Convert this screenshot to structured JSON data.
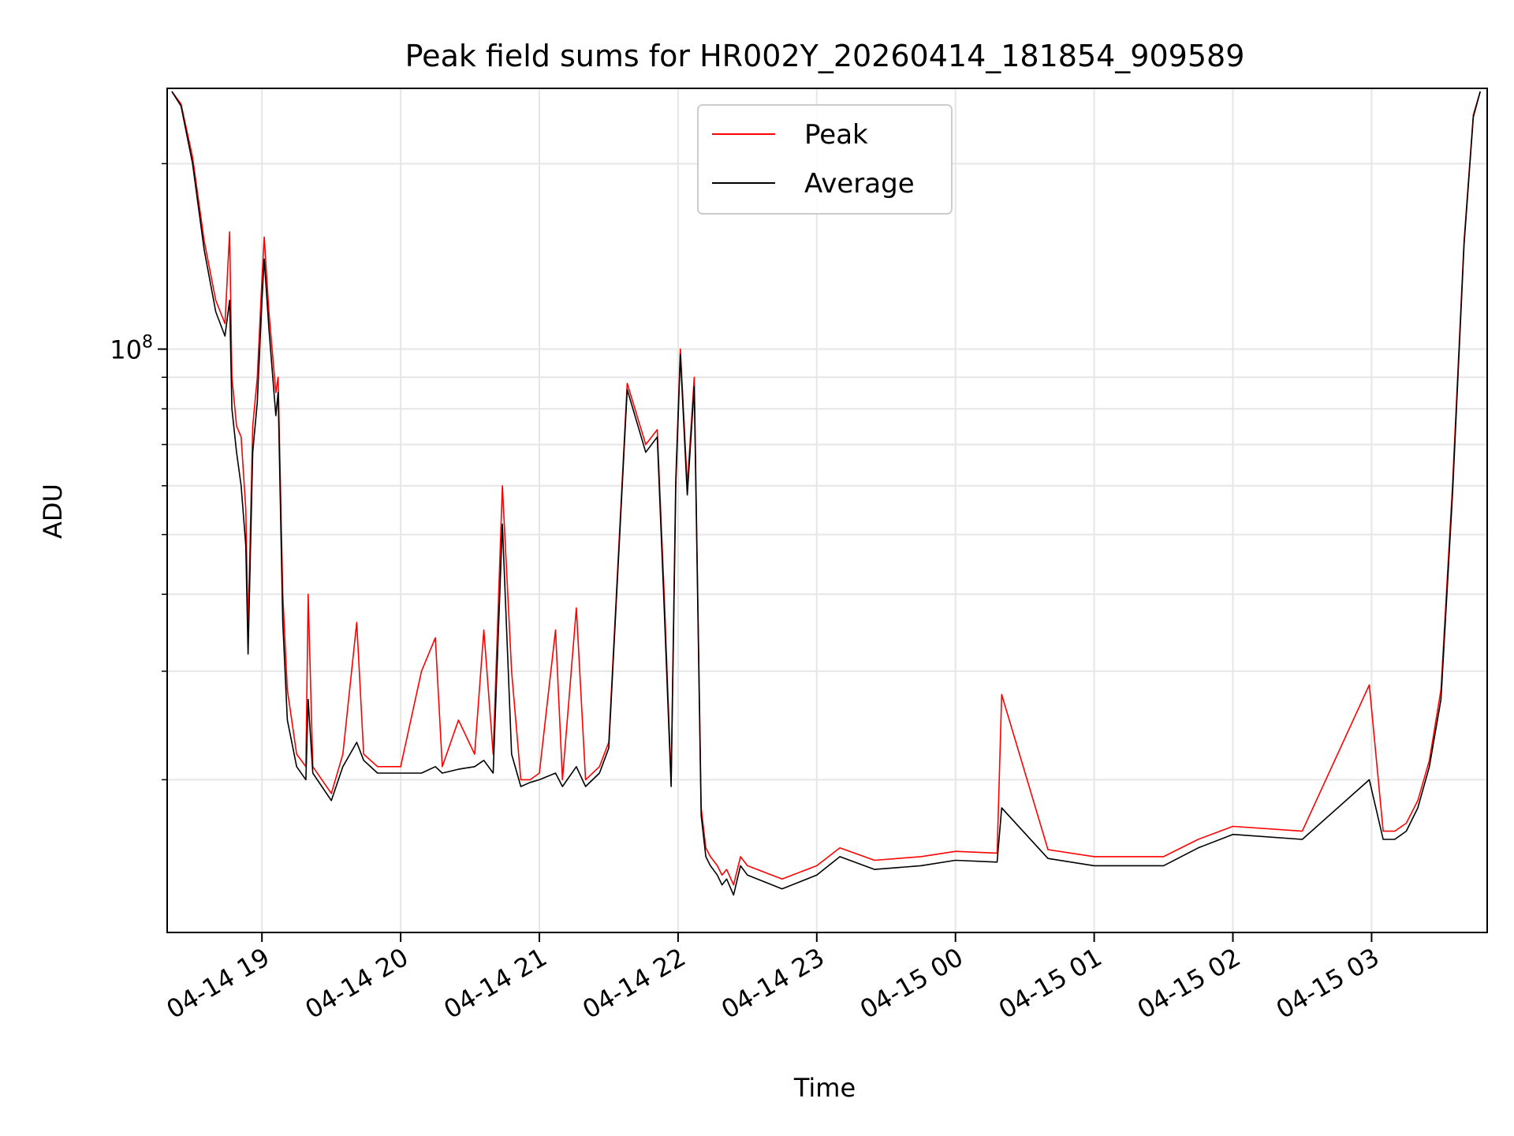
{
  "chart_data": {
    "type": "line",
    "title": "Peak field sums for HR002Y_20260414_181854_909589",
    "xlabel": "Time",
    "ylabel": "ADU",
    "yscale": "log",
    "grid": true,
    "grid_minor": true,
    "legend_position": "upper center",
    "xlim": [
      "2026-04-14 18:19",
      "2026-04-15 03:50"
    ],
    "ylim": [
      11300000,
      265000000
    ],
    "x_ticks": [
      "2026-04-14 19:00",
      "2026-04-14 20:00",
      "2026-04-14 21:00",
      "2026-04-14 22:00",
      "2026-04-14 23:00",
      "2026-04-15 00:00",
      "2026-04-15 01:00",
      "2026-04-15 02:00",
      "2026-04-15 03:00"
    ],
    "x_tick_labels": [
      "04-14 19",
      "04-14 20",
      "04-14 21",
      "04-14 22",
      "04-14 23",
      "04-15 00",
      "04-15 01",
      "04-15 02",
      "04-15 03"
    ],
    "y_ticks": [
      100000000
    ],
    "y_tick_labels": [
      {
        "base": "10",
        "exp": "8"
      }
    ],
    "y_minor_ticks": [
      20000000,
      30000000,
      40000000,
      50000000,
      60000000,
      70000000,
      80000000,
      90000000,
      200000000
    ],
    "series": [
      {
        "name": "Peak",
        "color": "#ff0000",
        "x": [
          "2026-04-14 18:21",
          "2026-04-14 18:25",
          "2026-04-14 18:30",
          "2026-04-14 18:35",
          "2026-04-14 18:40",
          "2026-04-14 18:44",
          "2026-04-14 18:46",
          "2026-04-14 18:47",
          "2026-04-14 18:49",
          "2026-04-14 18:51",
          "2026-04-14 18:53",
          "2026-04-14 18:54",
          "2026-04-14 18:56",
          "2026-04-14 18:58",
          "2026-04-14 19:00",
          "2026-04-14 19:01",
          "2026-04-14 19:03",
          "2026-04-14 19:06",
          "2026-04-14 19:07",
          "2026-04-14 19:09",
          "2026-04-14 19:11",
          "2026-04-14 19:15",
          "2026-04-14 19:19",
          "2026-04-14 19:20",
          "2026-04-14 19:22",
          "2026-04-14 19:30",
          "2026-04-14 19:35",
          "2026-04-14 19:41",
          "2026-04-14 19:44",
          "2026-04-14 19:50",
          "2026-04-14 20:00",
          "2026-04-14 20:09",
          "2026-04-14 20:15",
          "2026-04-14 20:18",
          "2026-04-14 20:25",
          "2026-04-14 20:32",
          "2026-04-14 20:36",
          "2026-04-14 20:40",
          "2026-04-14 20:44",
          "2026-04-14 20:48",
          "2026-04-14 20:52",
          "2026-04-14 20:56",
          "2026-04-14 21:00",
          "2026-04-14 21:07",
          "2026-04-14 21:10",
          "2026-04-14 21:16",
          "2026-04-14 21:20",
          "2026-04-14 21:26",
          "2026-04-14 21:30",
          "2026-04-14 21:38",
          "2026-04-14 21:46",
          "2026-04-14 21:51",
          "2026-04-14 21:54",
          "2026-04-14 21:57",
          "2026-04-14 21:59",
          "2026-04-14 22:01",
          "2026-04-14 22:04",
          "2026-04-14 22:07",
          "2026-04-14 22:10",
          "2026-04-14 22:12",
          "2026-04-14 22:14",
          "2026-04-14 22:17",
          "2026-04-14 22:19",
          "2026-04-14 22:21",
          "2026-04-14 22:24",
          "2026-04-14 22:27",
          "2026-04-14 22:30",
          "2026-04-14 22:45",
          "2026-04-14 23:00",
          "2026-04-14 23:10",
          "2026-04-14 23:25",
          "2026-04-14 23:45",
          "2026-04-15 00:00",
          "2026-04-15 00:18",
          "2026-04-15 00:20",
          "2026-04-15 00:40",
          "2026-04-15 01:00",
          "2026-04-15 01:30",
          "2026-04-15 01:45",
          "2026-04-15 02:00",
          "2026-04-15 02:30",
          "2026-04-15 02:59",
          "2026-04-15 03:05",
          "2026-04-15 03:10",
          "2026-04-15 03:15",
          "2026-04-15 03:20",
          "2026-04-15 03:25",
          "2026-04-15 03:30",
          "2026-04-15 03:35",
          "2026-04-15 03:40",
          "2026-04-15 03:44",
          "2026-04-15 03:47"
        ],
        "values": [
          262000000,
          250000000,
          205000000,
          150000000,
          120000000,
          110000000,
          155000000,
          90000000,
          75000000,
          72000000,
          55000000,
          35000000,
          75000000,
          90000000,
          130000000,
          152000000,
          115000000,
          85000000,
          90000000,
          40000000,
          28000000,
          22000000,
          21000000,
          40000000,
          21000000,
          19000000,
          22000000,
          36000000,
          22000000,
          21000000,
          21000000,
          30000000,
          34000000,
          21000000,
          25000000,
          22000000,
          35000000,
          22000000,
          60000000,
          30000000,
          20000000,
          20000000,
          20500000,
          35000000,
          20000000,
          38000000,
          20000000,
          21000000,
          23000000,
          88000000,
          70000000,
          74000000,
          40000000,
          20000000,
          62000000,
          100000000,
          60000000,
          90000000,
          18000000,
          15500000,
          15000000,
          14500000,
          14000000,
          14300000,
          13500000,
          15000000,
          14500000,
          13800000,
          14500000,
          15500000,
          14800000,
          15000000,
          15300000,
          15200000,
          27500000,
          15400000,
          15000000,
          15000000,
          16000000,
          16800000,
          16500000,
          28500000,
          16500000,
          16500000,
          17000000,
          18500000,
          21500000,
          28000000,
          60000000,
          150000000,
          240000000,
          262000000
        ]
      },
      {
        "name": "Average",
        "color": "#000000",
        "x": [
          "2026-04-14 18:21",
          "2026-04-14 18:25",
          "2026-04-14 18:30",
          "2026-04-14 18:35",
          "2026-04-14 18:40",
          "2026-04-14 18:44",
          "2026-04-14 18:46",
          "2026-04-14 18:47",
          "2026-04-14 18:49",
          "2026-04-14 18:51",
          "2026-04-14 18:53",
          "2026-04-14 18:54",
          "2026-04-14 18:56",
          "2026-04-14 18:58",
          "2026-04-14 19:00",
          "2026-04-14 19:01",
          "2026-04-14 19:03",
          "2026-04-14 19:06",
          "2026-04-14 19:07",
          "2026-04-14 19:09",
          "2026-04-14 19:11",
          "2026-04-14 19:15",
          "2026-04-14 19:19",
          "2026-04-14 19:20",
          "2026-04-14 19:22",
          "2026-04-14 19:30",
          "2026-04-14 19:35",
          "2026-04-14 19:41",
          "2026-04-14 19:44",
          "2026-04-14 19:50",
          "2026-04-14 20:00",
          "2026-04-14 20:09",
          "2026-04-14 20:15",
          "2026-04-14 20:18",
          "2026-04-14 20:25",
          "2026-04-14 20:32",
          "2026-04-14 20:36",
          "2026-04-14 20:40",
          "2026-04-14 20:44",
          "2026-04-14 20:48",
          "2026-04-14 20:52",
          "2026-04-14 20:56",
          "2026-04-14 21:00",
          "2026-04-14 21:07",
          "2026-04-14 21:10",
          "2026-04-14 21:16",
          "2026-04-14 21:20",
          "2026-04-14 21:26",
          "2026-04-14 21:30",
          "2026-04-14 21:38",
          "2026-04-14 21:46",
          "2026-04-14 21:51",
          "2026-04-14 21:54",
          "2026-04-14 21:57",
          "2026-04-14 21:59",
          "2026-04-14 22:01",
          "2026-04-14 22:04",
          "2026-04-14 22:07",
          "2026-04-14 22:10",
          "2026-04-14 22:12",
          "2026-04-14 22:14",
          "2026-04-14 22:17",
          "2026-04-14 22:19",
          "2026-04-14 22:21",
          "2026-04-14 22:24",
          "2026-04-14 22:27",
          "2026-04-14 22:30",
          "2026-04-14 22:45",
          "2026-04-14 23:00",
          "2026-04-14 23:10",
          "2026-04-14 23:25",
          "2026-04-14 23:45",
          "2026-04-15 00:00",
          "2026-04-15 00:18",
          "2026-04-15 00:20",
          "2026-04-15 00:40",
          "2026-04-15 01:00",
          "2026-04-15 01:30",
          "2026-04-15 01:45",
          "2026-04-15 02:00",
          "2026-04-15 02:30",
          "2026-04-15 02:59",
          "2026-04-15 03:05",
          "2026-04-15 03:10",
          "2026-04-15 03:15",
          "2026-04-15 03:20",
          "2026-04-15 03:25",
          "2026-04-15 03:30",
          "2026-04-15 03:35",
          "2026-04-15 03:40",
          "2026-04-15 03:44",
          "2026-04-15 03:47"
        ],
        "values": [
          262000000,
          248000000,
          200000000,
          145000000,
          115000000,
          105000000,
          120000000,
          80000000,
          68000000,
          60000000,
          48000000,
          32000000,
          68000000,
          82000000,
          120000000,
          140000000,
          108000000,
          78000000,
          85000000,
          36000000,
          25000000,
          21000000,
          20000000,
          27000000,
          20500000,
          18500000,
          21000000,
          23000000,
          21500000,
          20500000,
          20500000,
          20500000,
          21000000,
          20500000,
          20800000,
          21000000,
          21500000,
          20500000,
          52000000,
          22000000,
          19500000,
          19800000,
          20000000,
          20500000,
          19500000,
          21000000,
          19500000,
          20500000,
          22500000,
          86000000,
          68000000,
          72000000,
          38000000,
          19500000,
          60000000,
          98000000,
          58000000,
          87000000,
          17500000,
          15000000,
          14500000,
          14000000,
          13500000,
          13800000,
          13000000,
          14500000,
          14000000,
          13300000,
          14000000,
          15000000,
          14300000,
          14500000,
          14800000,
          14700000,
          18000000,
          14900000,
          14500000,
          14500000,
          15500000,
          16300000,
          16000000,
          20000000,
          16000000,
          16000000,
          16500000,
          18000000,
          21000000,
          27000000,
          58000000,
          148000000,
          238000000,
          262000000
        ]
      }
    ]
  }
}
